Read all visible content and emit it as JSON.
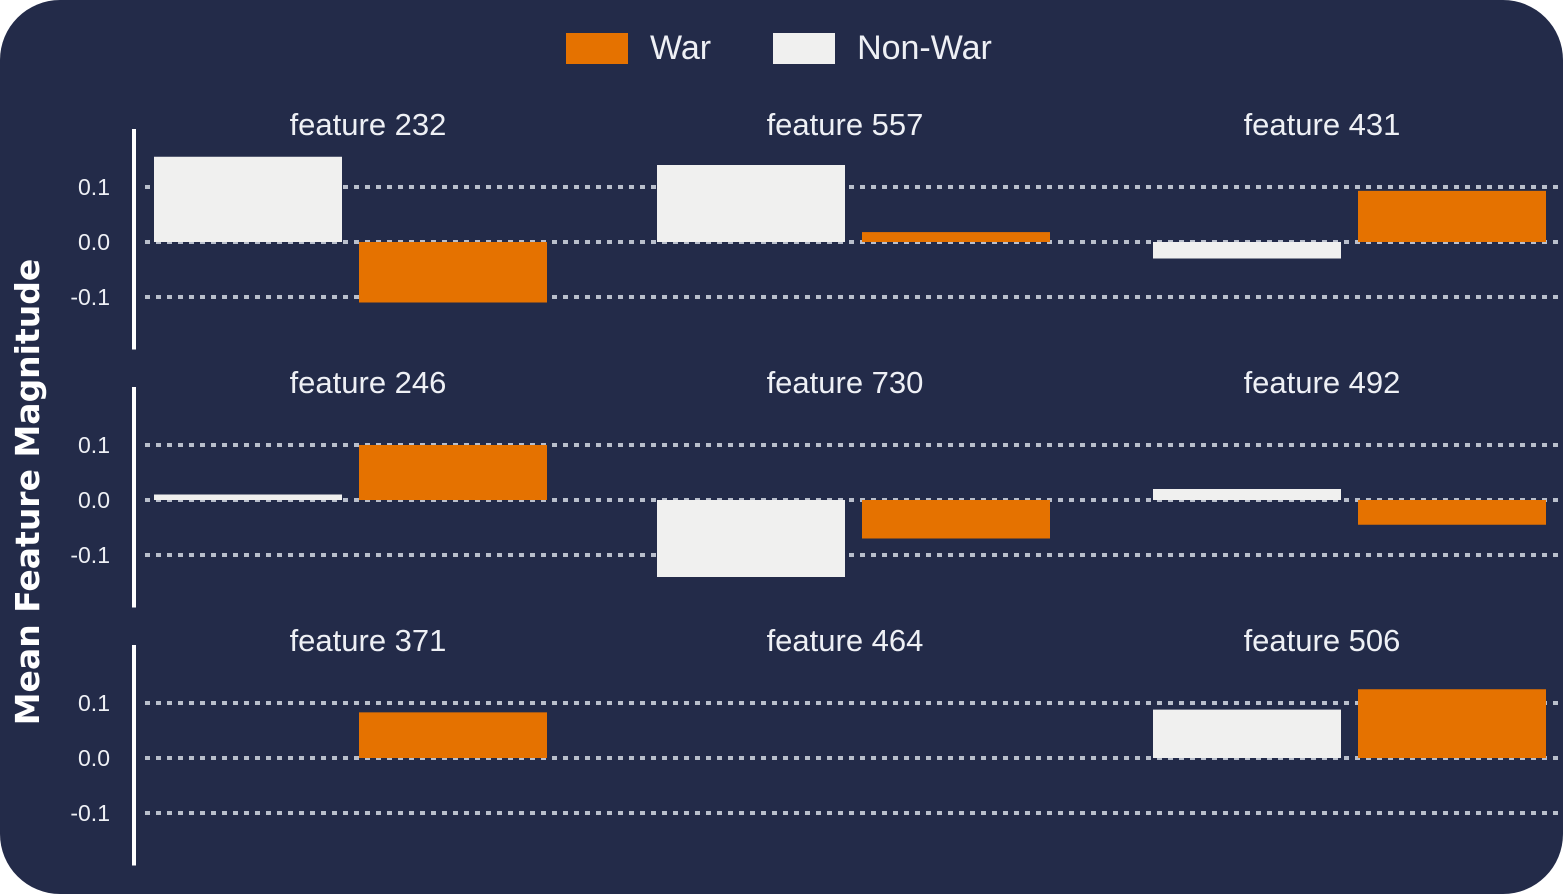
{
  "colors": {
    "background": "#232b49",
    "war": "#e57200",
    "non_war": "#f0f0ef",
    "grid": "#b9bfcc"
  },
  "legend": [
    {
      "label": "War",
      "color": "#e57200"
    },
    {
      "label": "Non-War",
      "color": "#f0f0ef"
    }
  ],
  "chart_data": {
    "type": "bar",
    "layout": "small-multiples 3x3",
    "ylabel": "Mean Feature Magnitude",
    "ylim": [
      -0.19,
      0.2
    ],
    "yticks": [
      0.1,
      0.0,
      -0.1
    ],
    "ytick_labels": [
      "0.1",
      "0.0",
      "-0.1"
    ],
    "grid": true,
    "legend_position": "top-center",
    "series_order": [
      "Non-War",
      "War"
    ],
    "panels": [
      {
        "title": "feature 232",
        "non_war": 0.155,
        "war": -0.11
      },
      {
        "title": "feature 557",
        "non_war": 0.14,
        "war": 0.018
      },
      {
        "title": "feature 431",
        "non_war": -0.03,
        "war": 0.093
      },
      {
        "title": "feature 246",
        "non_war": 0.01,
        "war": 0.1
      },
      {
        "title": "feature 730",
        "non_war": -0.14,
        "war": -0.07
      },
      {
        "title": "feature 492",
        "non_war": 0.02,
        "war": -0.045
      },
      {
        "title": "feature 371",
        "non_war": 0.0,
        "war": 0.083
      },
      {
        "title": "feature 464",
        "non_war": 0.0,
        "war": 0.0
      },
      {
        "title": "feature 506",
        "non_war": 0.088,
        "war": 0.125
      }
    ]
  }
}
